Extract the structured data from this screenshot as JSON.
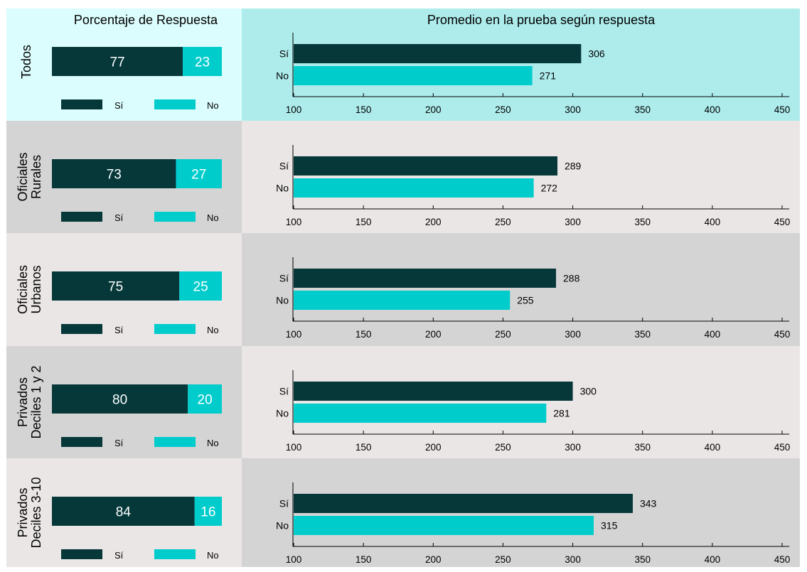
{
  "left_header": "Porcentaje de Respuesta",
  "right_header": "Promedio en la prueba según respuesta",
  "legend": {
    "yes": "Sí",
    "no": "No"
  },
  "bar_labels": {
    "yes": "Sí",
    "no": "No"
  },
  "colors": {
    "yes": "#06383A",
    "no": "#00CCCC",
    "header_left_bg": "#DCFDFD",
    "header_right_bg": "#AEECEC",
    "panel_dark": "#D4D4D4",
    "panel_light": "#EBE6E6",
    "pct_text": "#ffffff",
    "axis": "#000000"
  },
  "chart_data": {
    "type": "bar",
    "groups": [
      {
        "lines": [
          "Todos"
        ],
        "pct_yes": 77,
        "pct_no": 23,
        "score_yes": 306,
        "score_no": 271
      },
      {
        "lines": [
          "Oficiales",
          "Rurales"
        ],
        "pct_yes": 73,
        "pct_no": 27,
        "score_yes": 289,
        "score_no": 272
      },
      {
        "lines": [
          "Oficiales",
          "Urbanos"
        ],
        "pct_yes": 75,
        "pct_no": 25,
        "score_yes": 288,
        "score_no": 255
      },
      {
        "lines": [
          "Privados",
          "Deciles 1 y 2"
        ],
        "pct_yes": 80,
        "pct_no": 20,
        "score_yes": 300,
        "score_no": 281
      },
      {
        "lines": [
          "Privados",
          "Deciles 3-10"
        ],
        "pct_yes": 84,
        "pct_no": 16,
        "score_yes": 343,
        "score_no": 315
      }
    ],
    "score_axis": {
      "min": 100,
      "max": 450,
      "ticks": [
        100,
        150,
        200,
        250,
        300,
        350,
        400,
        450
      ]
    },
    "pct_axis": {
      "min": 0,
      "max": 100
    }
  }
}
